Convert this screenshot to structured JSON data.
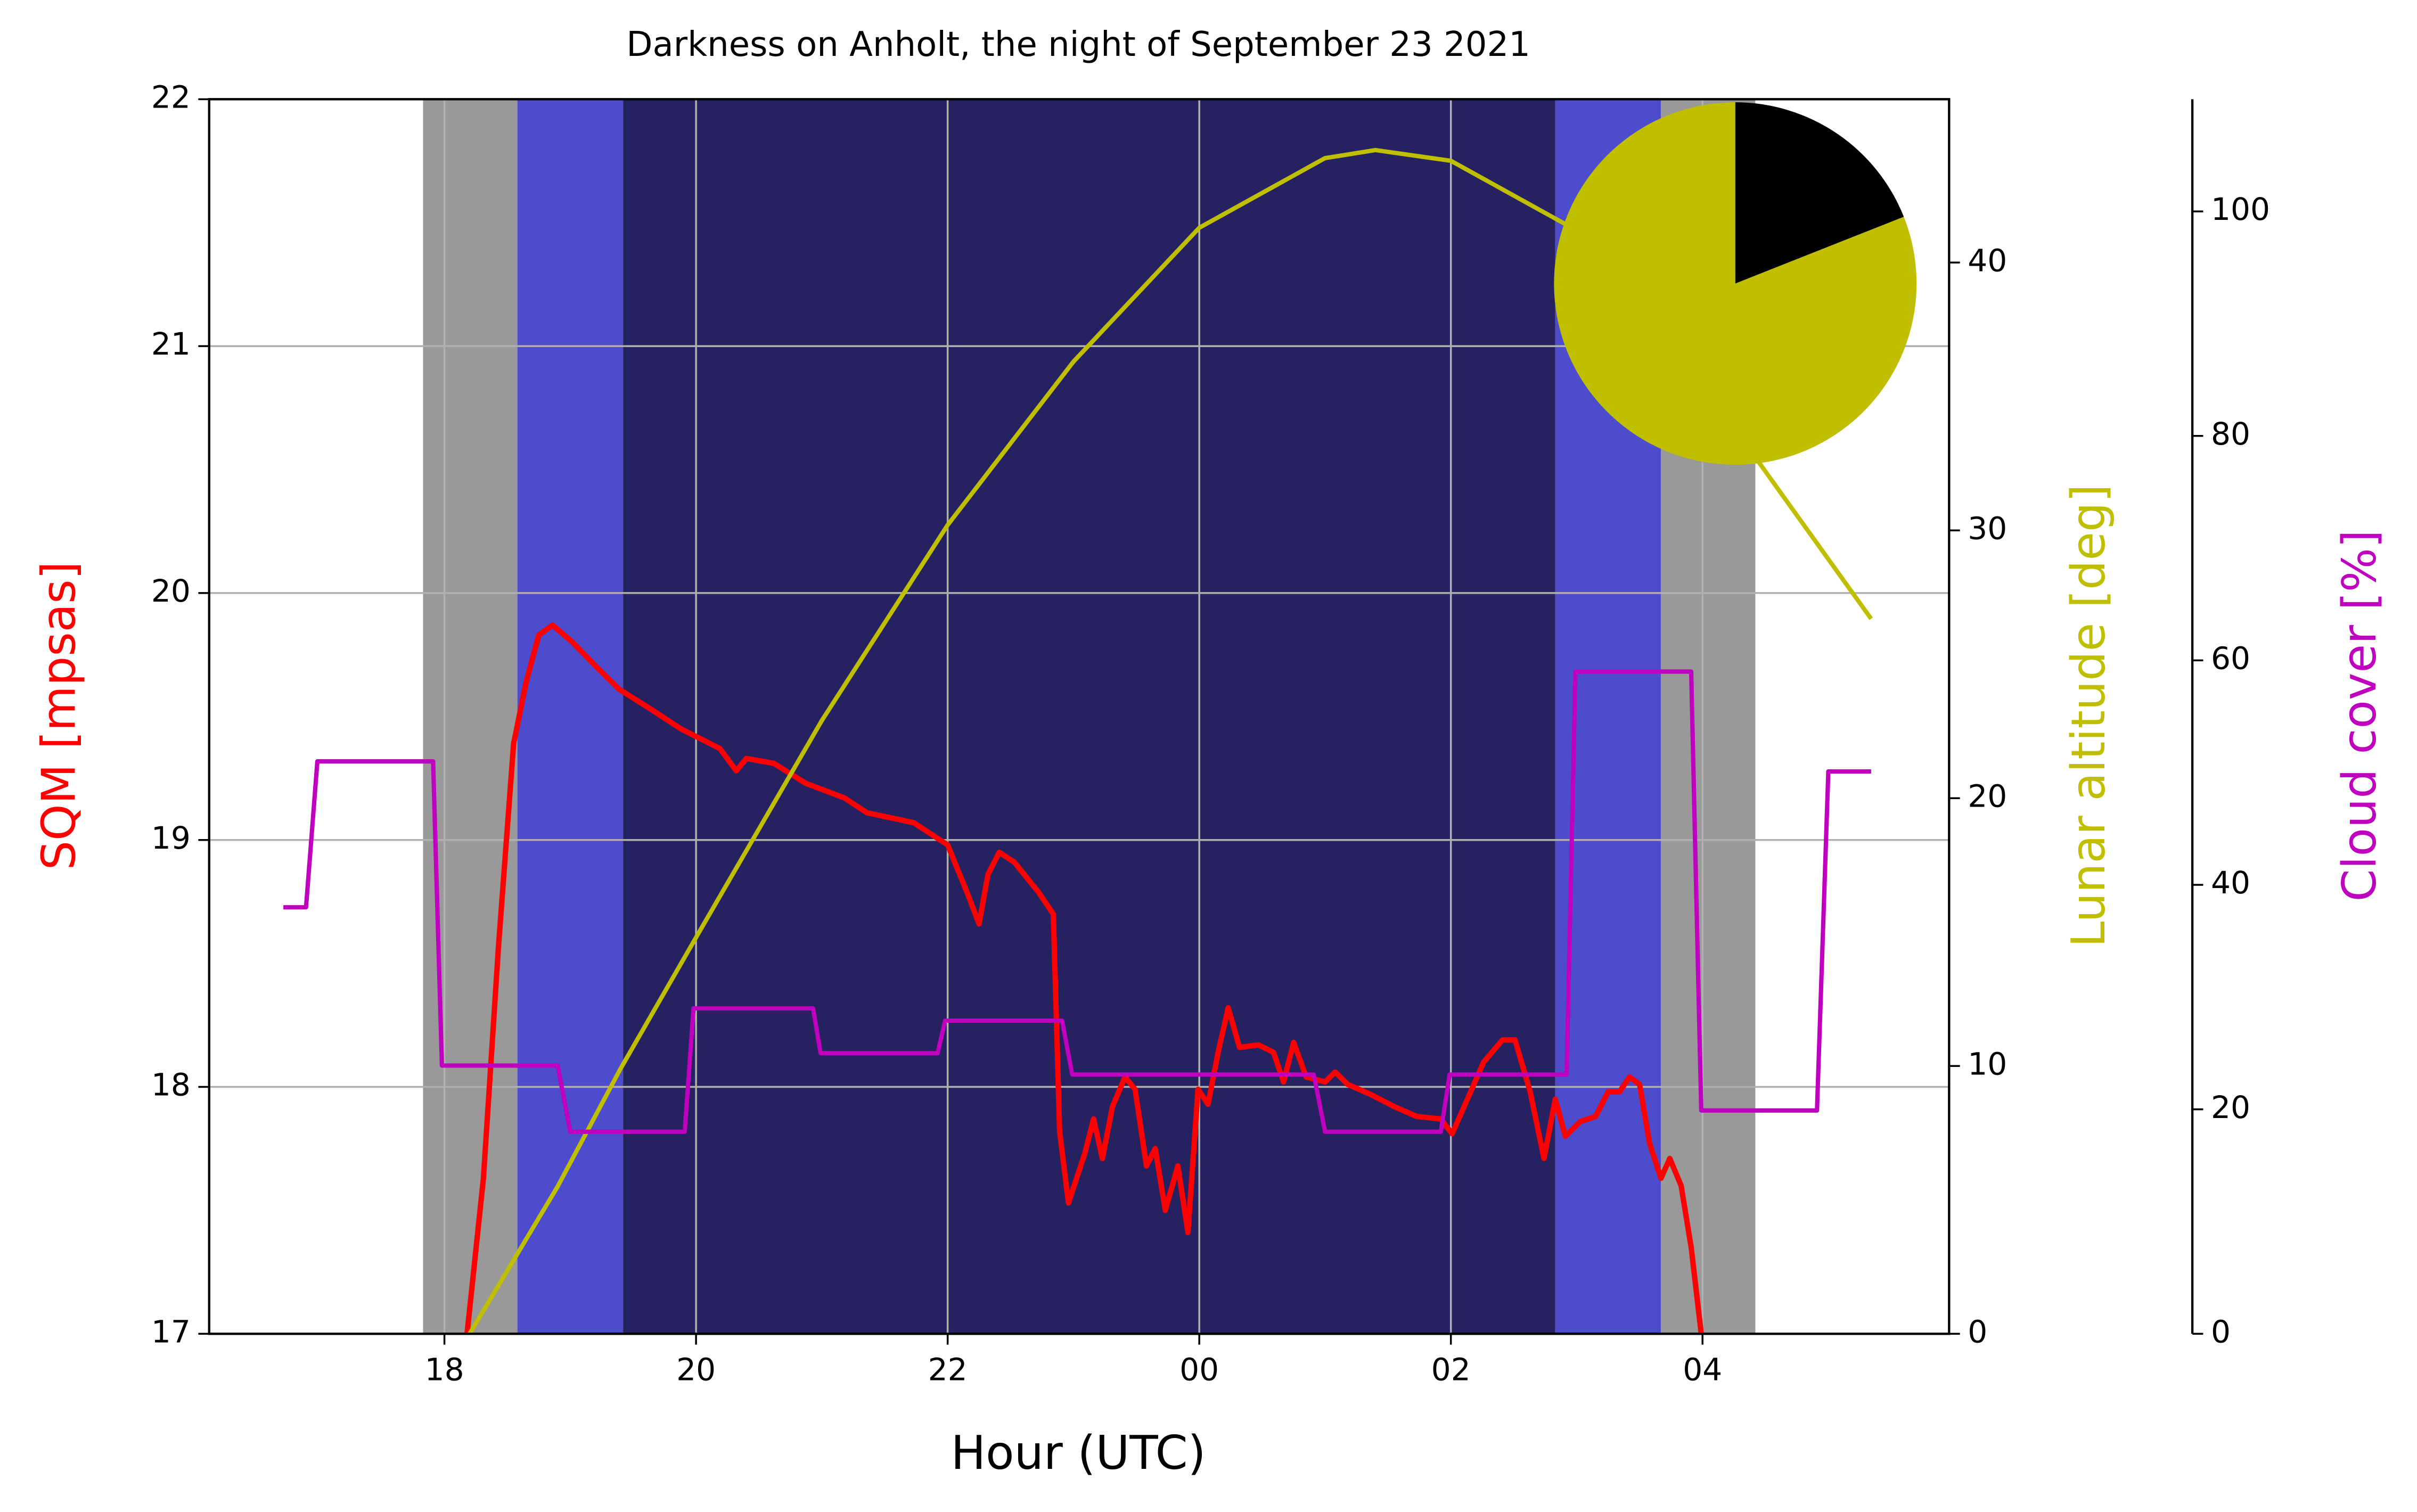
{
  "chart_data": [
    {
      "type": "line",
      "title": "Darkness on Anholt, the night of September 23 2021",
      "x_label": "Hour (UTC)",
      "y_label": "SQM [mpsas]",
      "y2_label": "Lunar altitude [deg]",
      "y3_label": "Cloud cover [%]",
      "xlim": [
        16.13,
        29.96
      ],
      "xticks": [
        18,
        20,
        22,
        {
          "value": 24,
          "label": "00"
        },
        {
          "value": 26,
          "label": "02"
        },
        {
          "value": 28,
          "label": "04"
        }
      ],
      "ylim": [
        17,
        22
      ],
      "yticks": [
        17,
        18,
        19,
        20,
        21,
        22
      ],
      "y2lim": [
        0,
        46.1
      ],
      "y2ticks": [
        0,
        10,
        20,
        30,
        40
      ],
      "y3lim": [
        0,
        110
      ],
      "y3ticks": [
        0,
        20,
        40,
        60,
        80,
        100
      ],
      "grid": true,
      "bands": [
        {
          "start": 17.83,
          "end": 18.58,
          "color": "#999999"
        },
        {
          "start": 18.58,
          "end": 19.42,
          "color": "#4c4ccc"
        },
        {
          "start": 19.42,
          "end": 26.83,
          "color": "#262262"
        },
        {
          "start": 26.83,
          "end": 27.67,
          "color": "#4c4ccc"
        },
        {
          "start": 27.67,
          "end": 28.42,
          "color": "#999999"
        }
      ],
      "series": [
        {
          "name": "SQM",
          "color": "#ff0000",
          "axis": "y",
          "x": [
            18.18,
            18.31,
            18.43,
            18.55,
            18.65,
            18.75,
            18.86,
            19.02,
            19.21,
            19.39,
            19.64,
            19.88,
            20.19,
            20.32,
            20.4,
            20.62,
            20.87,
            21.18,
            21.36,
            21.73,
            22.0,
            22.16,
            22.25,
            22.32,
            22.41,
            22.53,
            22.72,
            22.84,
            22.89,
            22.96,
            23.09,
            23.16,
            23.23,
            23.31,
            23.41,
            23.49,
            23.58,
            23.65,
            23.73,
            23.83,
            23.91,
            23.99,
            24.07,
            24.15,
            24.23,
            24.32,
            24.47,
            24.59,
            24.67,
            24.75,
            24.85,
            25.0,
            25.08,
            25.18,
            25.36,
            25.55,
            25.73,
            25.92,
            26.01,
            26.14,
            26.26,
            26.41,
            26.51,
            26.63,
            26.74,
            26.83,
            26.91,
            27.03,
            27.15,
            27.25,
            27.34,
            27.42,
            27.5,
            27.58,
            27.67,
            27.74,
            27.83,
            27.91,
            27.99
          ],
          "values": [
            17.0,
            17.63,
            18.57,
            19.39,
            19.64,
            19.83,
            19.87,
            19.8,
            19.7,
            19.61,
            19.53,
            19.45,
            19.37,
            19.28,
            19.33,
            19.31,
            19.23,
            19.17,
            19.11,
            19.07,
            18.98,
            18.78,
            18.66,
            18.86,
            18.95,
            18.91,
            18.79,
            18.7,
            17.82,
            17.53,
            17.73,
            17.87,
            17.71,
            17.92,
            18.04,
            17.99,
            17.68,
            17.75,
            17.5,
            17.68,
            17.41,
            17.99,
            17.93,
            18.14,
            18.32,
            18.16,
            18.17,
            18.14,
            18.02,
            18.18,
            18.04,
            18.02,
            18.06,
            18.01,
            17.97,
            17.92,
            17.88,
            17.87,
            17.81,
            17.96,
            18.1,
            18.19,
            18.19,
            17.98,
            17.71,
            17.95,
            17.8,
            17.86,
            17.88,
            17.98,
            17.98,
            18.04,
            18.01,
            17.77,
            17.63,
            17.71,
            17.6,
            17.35,
            17.0
          ]
        },
        {
          "name": "Lunar altitude",
          "color": "#bfbf00",
          "axis": "y2",
          "x": [
            18.2,
            18.9,
            19.4,
            20.0,
            21.0,
            22.0,
            23.0,
            24.0,
            25.0,
            25.4,
            26.0,
            27.0,
            28.0,
            28.5,
            29.34
          ],
          "values": [
            0,
            5.5,
            9.9,
            14.8,
            22.9,
            30.2,
            36.3,
            41.3,
            43.9,
            44.2,
            43.8,
            41.2,
            35.5,
            32.2,
            26.7
          ]
        },
        {
          "name": "Cloud cover",
          "color": "#bf00bf",
          "axis": "y3",
          "x": [
            16.72,
            16.9,
            16.99,
            17.91,
            17.98,
            18.9,
            19.0,
            19.91,
            19.98,
            20.93,
            20.99,
            21.92,
            21.98,
            22.91,
            22.99,
            24.91,
            25.0,
            25.92,
            25.99,
            26.92,
            26.99,
            27.91,
            27.99,
            28.91,
            29.0,
            29.34
          ],
          "values": [
            38,
            38,
            51,
            51,
            23.9,
            23.9,
            18,
            18,
            29,
            29,
            25,
            25,
            27.9,
            27.9,
            23.1,
            23.1,
            18,
            18,
            23.1,
            23.1,
            59,
            59,
            19.9,
            19.9,
            50.1,
            50.1
          ]
        }
      ]
    },
    {
      "type": "pie",
      "values": [
        19,
        81
      ],
      "colors": [
        "#000000",
        "#bfbf00"
      ]
    }
  ]
}
